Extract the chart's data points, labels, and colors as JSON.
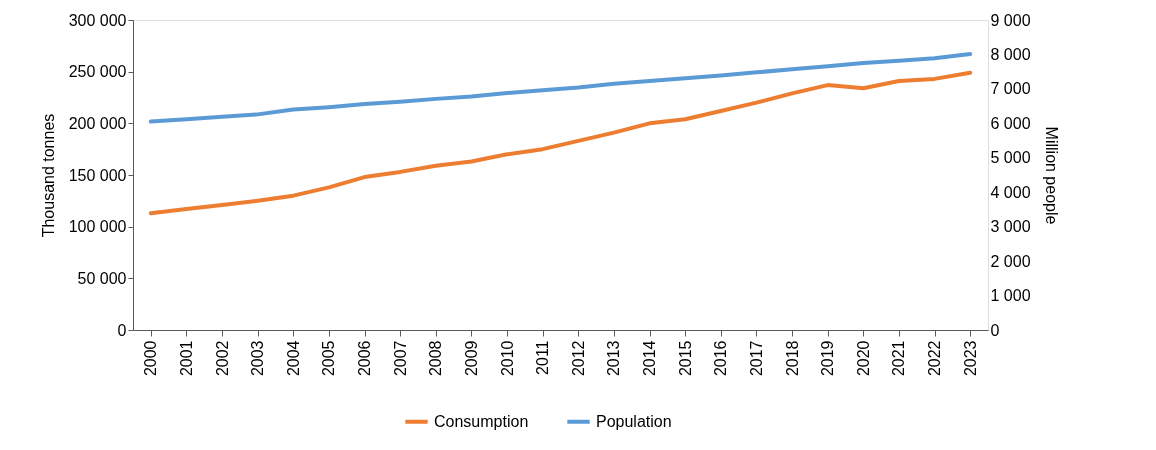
{
  "chart_data": {
    "type": "line",
    "ylabel": "Thousand tonnes",
    "y2label": "Million people",
    "categories": [
      "2000",
      "2001",
      "2002",
      "2003",
      "2004",
      "2005",
      "2006",
      "2007",
      "2008",
      "2009",
      "2010",
      "2011",
      "2012",
      "2013",
      "2014",
      "2015",
      "2016",
      "2017",
      "2018",
      "2019",
      "2020",
      "2021",
      "2022",
      "2023"
    ],
    "series": [
      {
        "name": "Consumption",
        "color": "#ed7d31",
        "values": [
          113000,
          117000,
          121000,
          125000,
          130000,
          138000,
          148000,
          153000,
          159000,
          163000,
          170000,
          175000,
          183000,
          191000,
          200000,
          204000,
          212000,
          220000,
          229000,
          237000,
          234000,
          241000,
          243000,
          249000
        ]
      },
      {
        "name": "Population",
        "color": "#5b9bd5",
        "axis": "y2",
        "values": [
          6050,
          6120,
          6190,
          6260,
          6400,
          6470,
          6560,
          6630,
          6710,
          6780,
          6880,
          6960,
          7040,
          7150,
          7230,
          7310,
          7390,
          7480,
          7570,
          7660,
          7750,
          7820,
          7890,
          8010
        ]
      }
    ],
    "ylim": [
      0,
      300000
    ],
    "yticks": [
      0,
      {
        "value": 50000,
        "label": "50 000"
      },
      {
        "value": 100000,
        "label": "100 000"
      },
      {
        "value": 150000,
        "label": "150 000"
      },
      {
        "value": 200000,
        "label": "200 000"
      },
      {
        "value": 250000,
        "label": "250 000"
      },
      {
        "value": 300000,
        "label": "300 000"
      }
    ],
    "y2lim": [
      0,
      9000
    ],
    "y2ticks": [
      0,
      {
        "value": 1000,
        "label": "1 000"
      },
      {
        "value": 2000,
        "label": "2 000"
      },
      {
        "value": 3000,
        "label": "3 000"
      },
      {
        "value": 4000,
        "label": "4 000"
      },
      {
        "value": 5000,
        "label": "5 000"
      },
      {
        "value": 6000,
        "label": "6 000"
      },
      {
        "value": 7000,
        "label": "7 000"
      },
      {
        "value": 8000,
        "label": "8 000"
      },
      {
        "value": 9000,
        "label": "9 000"
      }
    ],
    "grid": false,
    "legend": "bottom",
    "marker": "none",
    "line_style": "solid"
  }
}
